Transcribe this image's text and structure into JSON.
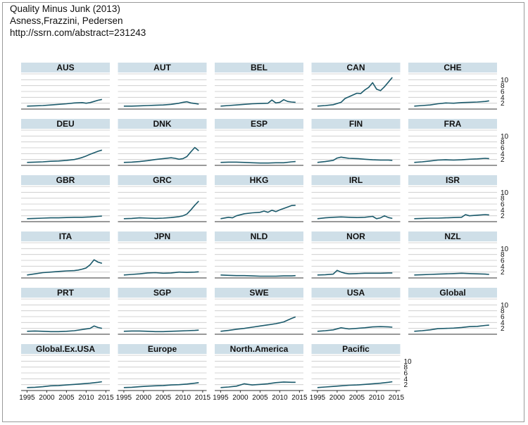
{
  "header": {
    "title": "Quality Minus Junk (2013)",
    "authors": "Asness,Frazzini, Pedersen",
    "url": "http://ssrn.com/abstract=231243"
  },
  "colors": {
    "line": "#1b5a6b",
    "strip": "#cfdfe8",
    "grid": "#c8c8c8",
    "axis": "#333333"
  },
  "chart_data": {
    "type": "line",
    "title": "",
    "xlabel": "",
    "ylabel": "",
    "xlim": [
      1993.5,
      2016
    ],
    "ylim": [
      0,
      12
    ],
    "x_ticks": [
      "1995",
      "2000",
      "2005",
      "2010",
      "2015"
    ],
    "y_ticks": [
      "2",
      "4",
      "6",
      "8",
      "10"
    ],
    "grid": true,
    "series": [
      {
        "name": "AUS",
        "x": [
          1995,
          1997,
          1999,
          2001,
          2003,
          2005,
          2007,
          2009,
          2010,
          2011,
          2012,
          2013,
          2014
        ],
        "values": [
          1.0,
          1.1,
          1.2,
          1.4,
          1.6,
          1.8,
          2.1,
          2.2,
          2.0,
          2.2,
          2.6,
          3.0,
          3.3
        ]
      },
      {
        "name": "AUT",
        "x": [
          1995,
          1997,
          1999,
          2001,
          2003,
          2005,
          2007,
          2009,
          2010,
          2011,
          2012,
          2013,
          2014
        ],
        "values": [
          1.0,
          1.0,
          1.1,
          1.2,
          1.3,
          1.4,
          1.6,
          2.0,
          2.3,
          2.5,
          2.1,
          1.9,
          1.7
        ]
      },
      {
        "name": "BEL",
        "x": [
          1995,
          1997,
          1999,
          2001,
          2003,
          2005,
          2007,
          2008,
          2009,
          2010,
          2011,
          2012,
          2013,
          2014
        ],
        "values": [
          1.0,
          1.2,
          1.4,
          1.6,
          1.8,
          1.9,
          2.0,
          3.1,
          2.1,
          2.3,
          3.2,
          2.6,
          2.4,
          2.3
        ]
      },
      {
        "name": "CAN",
        "x": [
          1995,
          1997,
          1999,
          2001,
          2002,
          2003,
          2004,
          2005,
          2006,
          2007,
          2008,
          2009,
          2010,
          2011,
          2012,
          2013,
          2014
        ],
        "values": [
          1.0,
          1.2,
          1.5,
          2.3,
          3.6,
          4.2,
          4.8,
          5.4,
          5.3,
          6.5,
          7.4,
          9.0,
          6.8,
          6.3,
          7.6,
          9.2,
          10.8
        ]
      },
      {
        "name": "CHE",
        "x": [
          1995,
          1997,
          1999,
          2001,
          2003,
          2005,
          2007,
          2009,
          2011,
          2013,
          2014
        ],
        "values": [
          1.0,
          1.2,
          1.4,
          1.8,
          2.1,
          2.0,
          2.2,
          2.3,
          2.4,
          2.6,
          2.8
        ]
      },
      {
        "name": "DEU",
        "x": [
          1995,
          1997,
          1999,
          2001,
          2003,
          2005,
          2007,
          2008,
          2009,
          2010,
          2011,
          2012,
          2013,
          2014
        ],
        "values": [
          1.0,
          1.1,
          1.2,
          1.4,
          1.5,
          1.7,
          2.0,
          2.3,
          2.7,
          3.2,
          3.8,
          4.3,
          4.8,
          5.2
        ]
      },
      {
        "name": "DNK",
        "x": [
          1995,
          1997,
          1999,
          2001,
          2003,
          2005,
          2007,
          2008,
          2009,
          2010,
          2011,
          2012,
          2013,
          2014
        ],
        "values": [
          1.0,
          1.1,
          1.3,
          1.6,
          2.0,
          2.3,
          2.6,
          2.4,
          2.1,
          2.3,
          3.0,
          4.6,
          6.1,
          5.0
        ]
      },
      {
        "name": "ESP",
        "x": [
          1995,
          1997,
          1999,
          2001,
          2003,
          2005,
          2007,
          2009,
          2011,
          2013,
          2014
        ],
        "values": [
          1.0,
          1.1,
          1.1,
          1.0,
          0.9,
          0.8,
          0.8,
          0.9,
          0.9,
          1.2,
          1.3
        ]
      },
      {
        "name": "FIN",
        "x": [
          1995,
          1997,
          1999,
          2000,
          2001,
          2002,
          2003,
          2005,
          2007,
          2009,
          2011,
          2013,
          2014
        ],
        "values": [
          1.0,
          1.3,
          1.7,
          2.5,
          2.8,
          2.6,
          2.4,
          2.3,
          2.1,
          1.9,
          1.8,
          1.8,
          1.7
        ]
      },
      {
        "name": "FRA",
        "x": [
          1995,
          1997,
          1999,
          2001,
          2003,
          2005,
          2007,
          2009,
          2011,
          2013,
          2014
        ],
        "values": [
          1.0,
          1.2,
          1.5,
          1.8,
          1.9,
          1.8,
          1.9,
          2.1,
          2.2,
          2.4,
          2.3
        ]
      },
      {
        "name": "GBR",
        "x": [
          1995,
          1997,
          1999,
          2001,
          2003,
          2005,
          2007,
          2009,
          2011,
          2013,
          2014
        ],
        "values": [
          1.0,
          1.1,
          1.2,
          1.3,
          1.3,
          1.4,
          1.5,
          1.5,
          1.6,
          1.8,
          1.9
        ]
      },
      {
        "name": "GRC",
        "x": [
          1995,
          1997,
          1999,
          2001,
          2003,
          2005,
          2007,
          2009,
          2010,
          2011,
          2012,
          2013,
          2014
        ],
        "values": [
          1.0,
          1.1,
          1.3,
          1.2,
          1.1,
          1.2,
          1.4,
          1.7,
          2.0,
          2.6,
          4.0,
          5.6,
          7.0
        ]
      },
      {
        "name": "HKG",
        "x": [
          1995,
          1997,
          1998,
          1999,
          2001,
          2003,
          2005,
          2006,
          2007,
          2008,
          2009,
          2010,
          2011,
          2012,
          2013,
          2014
        ],
        "values": [
          1.0,
          1.5,
          1.3,
          2.0,
          2.7,
          3.0,
          3.2,
          3.6,
          3.2,
          3.9,
          3.4,
          4.0,
          4.5,
          5.0,
          5.5,
          5.6
        ]
      },
      {
        "name": "IRL",
        "x": [
          1995,
          1997,
          1999,
          2001,
          2003,
          2005,
          2007,
          2009,
          2010,
          2011,
          2012,
          2013,
          2014
        ],
        "values": [
          1.0,
          1.3,
          1.5,
          1.6,
          1.5,
          1.4,
          1.5,
          1.8,
          1.0,
          1.3,
          2.0,
          1.4,
          1.1
        ]
      },
      {
        "name": "ISR",
        "x": [
          1995,
          1997,
          1999,
          2001,
          2003,
          2005,
          2007,
          2008,
          2009,
          2011,
          2013,
          2014
        ],
        "values": [
          1.0,
          1.1,
          1.2,
          1.2,
          1.3,
          1.4,
          1.5,
          2.4,
          2.0,
          2.2,
          2.4,
          2.3
        ]
      },
      {
        "name": "ITA",
        "x": [
          1995,
          1997,
          1999,
          2001,
          2003,
          2005,
          2007,
          2008,
          2009,
          2010,
          2011,
          2012,
          2013,
          2014
        ],
        "values": [
          1.0,
          1.4,
          1.8,
          2.0,
          2.2,
          2.4,
          2.5,
          2.7,
          3.0,
          3.4,
          4.5,
          6.2,
          5.4,
          5.0
        ]
      },
      {
        "name": "JPN",
        "x": [
          1995,
          1997,
          1999,
          2001,
          2003,
          2005,
          2007,
          2009,
          2011,
          2013,
          2014
        ],
        "values": [
          1.0,
          1.2,
          1.4,
          1.7,
          1.8,
          1.6,
          1.7,
          2.0,
          1.9,
          2.0,
          2.1
        ]
      },
      {
        "name": "NLD",
        "x": [
          1995,
          1997,
          1999,
          2001,
          2003,
          2005,
          2007,
          2009,
          2011,
          2013,
          2014
        ],
        "values": [
          1.0,
          0.9,
          0.8,
          0.8,
          0.7,
          0.6,
          0.6,
          0.6,
          0.7,
          0.7,
          0.8
        ]
      },
      {
        "name": "NOR",
        "x": [
          1995,
          1997,
          1999,
          2000,
          2001,
          2002,
          2003,
          2005,
          2007,
          2009,
          2011,
          2013,
          2014
        ],
        "values": [
          1.0,
          1.1,
          1.3,
          2.6,
          2.0,
          1.6,
          1.4,
          1.5,
          1.6,
          1.6,
          1.6,
          1.7,
          1.7
        ]
      },
      {
        "name": "NZL",
        "x": [
          1995,
          1997,
          1999,
          2001,
          2003,
          2005,
          2007,
          2009,
          2011,
          2013,
          2014
        ],
        "values": [
          1.0,
          1.1,
          1.2,
          1.3,
          1.4,
          1.5,
          1.6,
          1.5,
          1.4,
          1.3,
          1.2
        ]
      },
      {
        "name": "PRT",
        "x": [
          1995,
          1997,
          1999,
          2001,
          2003,
          2005,
          2007,
          2009,
          2011,
          2012,
          2013,
          2014
        ],
        "values": [
          1.0,
          1.1,
          1.0,
          0.9,
          0.9,
          1.0,
          1.2,
          1.6,
          2.0,
          2.8,
          2.3,
          2.0
        ]
      },
      {
        "name": "SGP",
        "x": [
          1995,
          1997,
          1999,
          2001,
          2003,
          2005,
          2007,
          2009,
          2011,
          2013,
          2014
        ],
        "values": [
          1.0,
          1.1,
          1.1,
          1.0,
          0.9,
          0.9,
          1.0,
          1.1,
          1.2,
          1.3,
          1.4
        ]
      },
      {
        "name": "SWE",
        "x": [
          1995,
          1997,
          1999,
          2001,
          2003,
          2005,
          2007,
          2009,
          2010,
          2011,
          2012,
          2013,
          2014
        ],
        "values": [
          1.0,
          1.3,
          1.7,
          2.0,
          2.4,
          2.8,
          3.2,
          3.6,
          3.9,
          4.2,
          4.8,
          5.4,
          5.9
        ]
      },
      {
        "name": "USA",
        "x": [
          1995,
          1997,
          1999,
          2001,
          2002,
          2003,
          2005,
          2007,
          2009,
          2011,
          2013,
          2014
        ],
        "values": [
          1.0,
          1.2,
          1.5,
          2.2,
          2.0,
          1.8,
          2.0,
          2.2,
          2.5,
          2.6,
          2.5,
          2.4
        ]
      },
      {
        "name": "Global",
        "x": [
          1995,
          1997,
          1999,
          2001,
          2003,
          2005,
          2007,
          2009,
          2011,
          2013,
          2014
        ],
        "values": [
          1.0,
          1.2,
          1.5,
          1.9,
          2.0,
          2.1,
          2.3,
          2.6,
          2.7,
          3.0,
          3.1
        ]
      },
      {
        "name": "Global.Ex.USA",
        "x": [
          1995,
          1997,
          1999,
          2001,
          2003,
          2005,
          2007,
          2009,
          2011,
          2013,
          2014
        ],
        "values": [
          1.0,
          1.1,
          1.3,
          1.6,
          1.7,
          1.9,
          2.1,
          2.3,
          2.5,
          2.8,
          3.0
        ]
      },
      {
        "name": "Europe",
        "x": [
          1995,
          1997,
          1999,
          2001,
          2003,
          2005,
          2007,
          2009,
          2011,
          2013,
          2014
        ],
        "values": [
          1.0,
          1.1,
          1.3,
          1.5,
          1.6,
          1.7,
          1.9,
          2.0,
          2.2,
          2.5,
          2.7
        ]
      },
      {
        "name": "North.America",
        "x": [
          1995,
          1997,
          1999,
          2001,
          2002,
          2003,
          2005,
          2007,
          2009,
          2011,
          2013,
          2014
        ],
        "values": [
          1.0,
          1.2,
          1.5,
          2.3,
          2.1,
          1.9,
          2.1,
          2.3,
          2.7,
          2.9,
          2.8,
          2.8
        ]
      },
      {
        "name": "Pacific",
        "x": [
          1995,
          1997,
          1999,
          2001,
          2003,
          2005,
          2007,
          2009,
          2011,
          2013,
          2014
        ],
        "values": [
          1.0,
          1.2,
          1.4,
          1.6,
          1.8,
          1.9,
          2.1,
          2.3,
          2.5,
          2.8,
          3.0
        ]
      }
    ]
  }
}
